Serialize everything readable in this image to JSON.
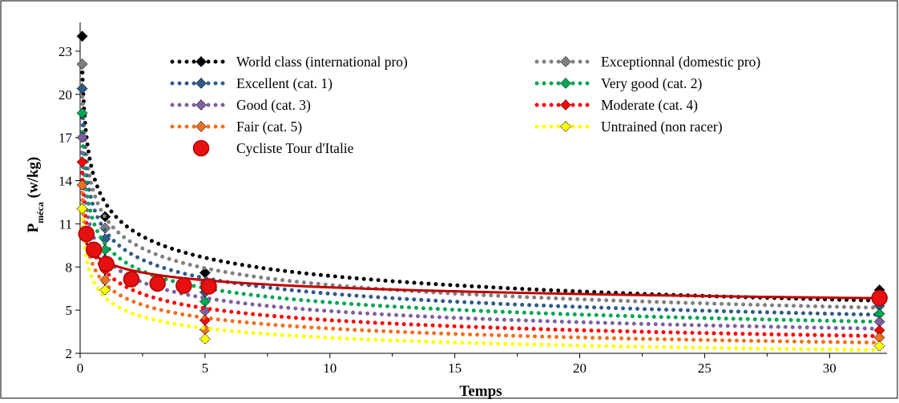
{
  "chart_data": {
    "type": "scatter",
    "title": "",
    "xlabel": "Temps",
    "ylabel_main": "P",
    "ylabel_sub": "méca",
    "ylabel_unit": " (w/kg)",
    "xlim": [
      0,
      32.3
    ],
    "ylim": [
      2,
      25
    ],
    "xticks": [
      0,
      5,
      10,
      15,
      20,
      25,
      30
    ],
    "yticks": [
      2,
      5,
      8,
      11,
      14,
      17,
      20,
      23
    ],
    "grid": false,
    "legend": "top, two columns",
    "profile_x": [
      0.083,
      1,
      5,
      32
    ],
    "series": [
      {
        "name": "World class (international pro)",
        "color": "#000000",
        "style": "dotted",
        "values": [
          24.04,
          11.5,
          7.6,
          6.4
        ]
      },
      {
        "name": "Exceptionnal (domestic pro)",
        "color": "#808080",
        "style": "dotted",
        "values": [
          22.1,
          10.7,
          6.9,
          5.85
        ]
      },
      {
        "name": "Excellent (cat. 1)",
        "color": "#2E5C8A",
        "style": "dotted",
        "values": [
          20.4,
          9.95,
          6.25,
          5.3
        ]
      },
      {
        "name": "Very good (cat. 2)",
        "color": "#00A651",
        "style": "dotted",
        "values": [
          18.7,
          9.2,
          5.6,
          4.75
        ]
      },
      {
        "name": "Good (cat. 3)",
        "color": "#7E60A0",
        "style": "dotted",
        "values": [
          17.0,
          8.5,
          4.95,
          4.2
        ]
      },
      {
        "name": "Moderate (cat. 4)",
        "color": "#FF0000",
        "style": "dotted",
        "values": [
          15.3,
          7.8,
          4.3,
          3.6
        ]
      },
      {
        "name": "Fair (cat. 5)",
        "color": "#F07020",
        "style": "dotted",
        "values": [
          13.7,
          7.1,
          3.65,
          3.1
        ]
      },
      {
        "name": "Untrained (non racer)",
        "color": "#FFFF00",
        "style": "dotted",
        "values": [
          12.05,
          6.4,
          3.0,
          2.5
        ]
      }
    ],
    "athlete": {
      "name": "Cycliste Tour d'Italie",
      "color": "#C00000",
      "points": [
        {
          "x": 0.25,
          "y": 10.3
        },
        {
          "x": 0.55,
          "y": 9.2
        },
        {
          "x": 1.05,
          "y": 8.2
        },
        {
          "x": 2.05,
          "y": 7.15
        },
        {
          "x": 3.1,
          "y": 6.85
        },
        {
          "x": 4.15,
          "y": 6.7
        },
        {
          "x": 5.15,
          "y": 6.65
        },
        {
          "x": 32,
          "y": 5.85
        }
      ],
      "trend": {
        "type": "power",
        "a": 8.38,
        "b": -0.1047
      }
    }
  }
}
